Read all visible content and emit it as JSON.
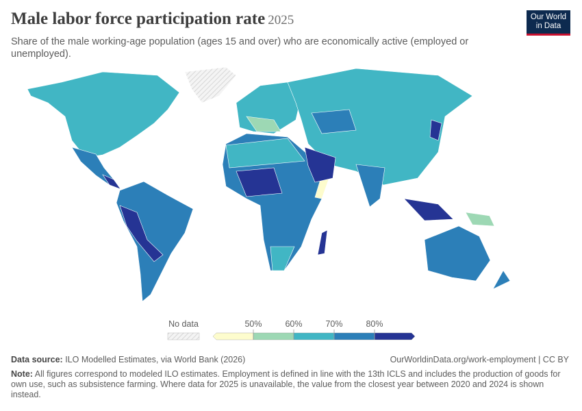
{
  "header": {
    "title": "Male labor force participation rate",
    "year": "2025",
    "subtitle": "Share of the male working-age population (ages 15 and over) who are economically active (employed or unemployed).",
    "logo": [
      "Our World",
      "in Data"
    ]
  },
  "legend": {
    "no_data_label": "No data",
    "ticks": [
      {
        "value": 50,
        "label": "50%"
      },
      {
        "value": 60,
        "label": "60%"
      },
      {
        "value": 70,
        "label": "70%"
      },
      {
        "value": 80,
        "label": "80%"
      }
    ],
    "colors": [
      "#fdfccd",
      "#9dd8b4",
      "#41b6c4",
      "#2c7fb8",
      "#253494"
    ]
  },
  "footer": {
    "source_label": "Data source:",
    "source": "ILO Modelled Estimates, via World Bank (2026)",
    "url": "OurWorldinData.org/work-employment | CC BY",
    "note_label": "Note:",
    "note": "All figures correspond to modeled ILO estimates. Employment is defined in line with the 13th ICLS and includes the production of goods for own use, such as subsistence farming. Where data for 2025 is unavailable, the value from the closest year between 2020 and 2024 is shown instead."
  }
}
